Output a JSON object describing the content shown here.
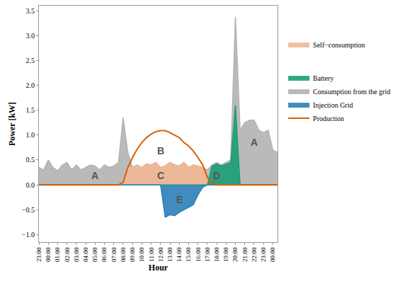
{
  "chart_data": {
    "type": "area",
    "x_label": "Hour",
    "y_label": "Power [kW]",
    "categories": [
      "23:00",
      null,
      "00:00",
      null,
      "01:00",
      null,
      "02:00",
      null,
      "03:00",
      null,
      "04:00",
      null,
      "05:00",
      null,
      "06:00",
      null,
      "07:00",
      null,
      "08:00",
      null,
      "09:00",
      null,
      "10:00",
      null,
      "11:00",
      null,
      "12:00",
      null,
      "13:00",
      null,
      "14:00",
      null,
      "15:00",
      null,
      "16:00",
      null,
      "17:00",
      null,
      "18:00",
      null,
      "19:00",
      null,
      "20:00",
      null,
      "21:00",
      null,
      "22:00",
      null,
      "23:00",
      null,
      "00:00",
      null
    ],
    "series": [
      {
        "name": "Consumption from the grid",
        "type": "area",
        "color": "#b3b3b3",
        "values": [
          0.35,
          0.3,
          0.5,
          0.35,
          0.28,
          0.4,
          0.45,
          0.3,
          0.4,
          0.3,
          0.35,
          0.4,
          0.38,
          0.3,
          0.4,
          0.35,
          0.38,
          0.45,
          1.35,
          0.65,
          0.35,
          0.4,
          0.35,
          0.42,
          0.4,
          0.45,
          0.35,
          0.38,
          0.45,
          0.4,
          0.38,
          0.45,
          0.35,
          0.4,
          0.38,
          0.35,
          0.3,
          0.4,
          0.45,
          0.4,
          0.45,
          0.5,
          3.38,
          1.1,
          1.25,
          1.3,
          1.3,
          1.1,
          1.05,
          1.1,
          0.7,
          0.65
        ]
      },
      {
        "name": "Self−consumption",
        "type": "area",
        "color": "#f2b895",
        "values": [
          0,
          0,
          0,
          0,
          0,
          0,
          0,
          0,
          0,
          0,
          0,
          0,
          0,
          0,
          0,
          0,
          0,
          0,
          0.05,
          0.35,
          0.35,
          0.4,
          0.35,
          0.42,
          0.4,
          0.45,
          0.35,
          0.38,
          0.45,
          0.4,
          0.38,
          0.45,
          0.35,
          0.4,
          0.38,
          0.35,
          0.15,
          0.02,
          0,
          0,
          0,
          0,
          0,
          0,
          0,
          0,
          0,
          0,
          0,
          0,
          0,
          0
        ]
      },
      {
        "name": "Battery",
        "type": "area",
        "color": "#1b9e77",
        "values": [
          0,
          0,
          0,
          0,
          0,
          0,
          0,
          0,
          0,
          0,
          0,
          0,
          0,
          0,
          0,
          0,
          0,
          0,
          0,
          0,
          0,
          0,
          0,
          0,
          0,
          0,
          0,
          0,
          0,
          0,
          0,
          0,
          0,
          0,
          0,
          0,
          0,
          0.38,
          0.42,
          0.38,
          0.42,
          0.45,
          1.6,
          0,
          0,
          0,
          0,
          0,
          0,
          0,
          0,
          0
        ]
      },
      {
        "name": "Injection Grid",
        "type": "area",
        "color": "#2c7fb8",
        "values": [
          0,
          0,
          0,
          0,
          0,
          0,
          0,
          0,
          0,
          0,
          0,
          0,
          0,
          0,
          0,
          0,
          0,
          0,
          0,
          0,
          0,
          0,
          0,
          0,
          0,
          0,
          0,
          -0.65,
          -0.6,
          -0.62,
          -0.55,
          -0.5,
          -0.45,
          -0.4,
          -0.2,
          -0.05,
          0,
          0,
          0,
          0,
          0,
          0,
          0,
          0,
          0,
          0,
          0,
          0,
          0,
          0,
          0,
          0
        ]
      },
      {
        "name": "Production",
        "type": "line",
        "color": "#d95f02",
        "values": [
          0,
          0,
          0,
          0,
          0,
          0,
          0,
          0,
          0,
          0,
          0,
          0,
          0,
          0,
          0,
          0,
          0,
          0,
          0.05,
          0.35,
          0.55,
          0.72,
          0.85,
          0.95,
          1.02,
          1.07,
          1.09,
          1.09,
          1.05,
          1.0,
          0.95,
          0.85,
          0.78,
          0.68,
          0.55,
          0.4,
          0.15,
          0.02,
          0,
          0,
          0,
          0,
          0,
          0,
          0,
          0,
          0,
          0,
          0,
          0,
          0,
          0
        ]
      }
    ],
    "ylim": [
      -1.15,
      3.6
    ],
    "yticks": [
      {
        "value": -1.0,
        "label": "−1.0"
      },
      {
        "value": -0.5,
        "label": "−0.5"
      },
      {
        "value": 0,
        "label": "0.0"
      },
      {
        "value": 0.5,
        "label": "0.5"
      },
      {
        "value": 1,
        "label": "1.0"
      },
      {
        "value": 1.5,
        "label": "1.5"
      },
      {
        "value": 2,
        "label": "2.0"
      },
      {
        "value": 2.5,
        "label": "2.5"
      },
      {
        "value": 3,
        "label": "3.0"
      },
      {
        "value": 3.5,
        "label": "3.5"
      }
    ],
    "annotations": [
      {
        "text": "A",
        "x": "05:00",
        "y": 0.18
      },
      {
        "text": "B",
        "x": "12:00",
        "y": 0.68
      },
      {
        "text": "C",
        "x": "12:00",
        "y": 0.18
      },
      {
        "text": "D",
        "x": "18:00",
        "y": 0.18
      },
      {
        "text": "E",
        "x": "14:00",
        "y": -0.3
      },
      {
        "text": "A",
        "x": "22:00",
        "y": 0.85
      }
    ],
    "grid": false,
    "legend": "right"
  }
}
